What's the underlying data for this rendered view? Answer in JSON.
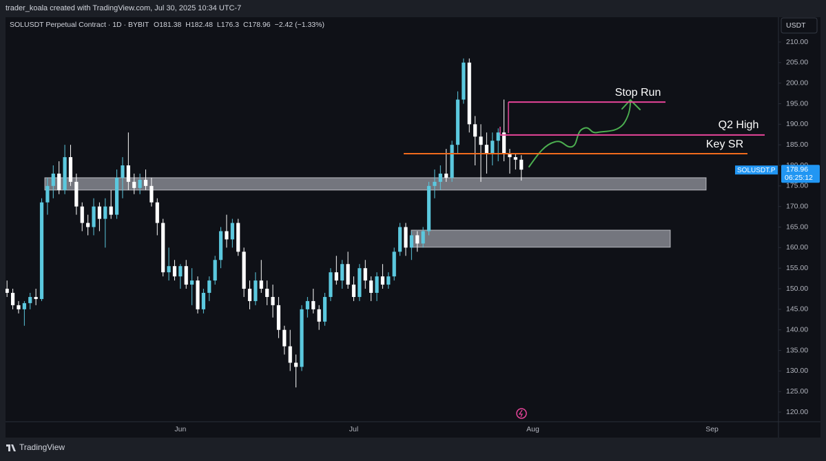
{
  "watermark": "trader_koala created with TradingView.com, Jul 30, 2025 10:34 UTC-7",
  "footer": "TradingView",
  "chart_data": {
    "type": "candlestick",
    "symbol": "SOLUSDT Perpetual Contract · 1D · BYBIT",
    "ohlc_prefixes": [
      "O",
      "H",
      "L",
      "C"
    ],
    "change": "−2.42 (−1.33%)",
    "currency": "USDT",
    "price_tag": {
      "symbol": "SOLUSDT.P",
      "countdown": "06:25:12"
    },
    "up_color": "#5bc8de",
    "down_color": "#ffffff",
    "grid": false,
    "levels": [
      {
        "label": "Stop Run",
        "value": 195.4,
        "color": "#e8459a"
      },
      {
        "label": "Q2 High",
        "value": 187.4,
        "color": "#e8459a"
      },
      {
        "label": "Key SR",
        "value": 182.85,
        "color": "#f26b1d"
      }
    ],
    "zones": [
      {
        "from": 174,
        "to": 177
      },
      {
        "from": 160.1,
        "to": 164.25
      }
    ],
    "ylim": [
      117.66,
      216.03
    ],
    "yticks": [
      {
        "value": 120,
        "label": "120.00"
      },
      {
        "value": 125,
        "label": "125.00"
      },
      {
        "value": 130,
        "label": "130.00"
      },
      {
        "value": 135,
        "label": "135.00"
      },
      {
        "value": 140,
        "label": "140.00"
      },
      {
        "value": 145,
        "label": "145.00"
      },
      {
        "value": 150,
        "label": "150.00"
      },
      {
        "value": 155,
        "label": "155.00"
      },
      {
        "value": 160,
        "label": "160.00"
      },
      {
        "value": 165,
        "label": "165.00"
      },
      {
        "value": 170,
        "label": "170.00"
      },
      {
        "value": 175,
        "label": "175.00"
      },
      {
        "value": 180,
        "label": "180.00"
      },
      {
        "value": 185,
        "label": "185.00"
      },
      {
        "value": 190,
        "label": "190.00"
      },
      {
        "value": 195,
        "label": "195.00"
      },
      {
        "value": 200,
        "label": "200.00"
      },
      {
        "value": 205,
        "label": "205.00"
      },
      {
        "value": 210,
        "label": "210.00"
      }
    ],
    "categories": [
      null,
      null,
      null,
      null,
      null,
      null,
      null,
      null,
      null,
      null,
      null,
      null,
      null,
      null,
      null,
      null,
      null,
      null,
      null,
      null,
      null,
      null,
      null,
      null,
      null,
      null,
      null,
      null,
      null,
      null,
      "Jun",
      null,
      null,
      null,
      null,
      null,
      null,
      null,
      null,
      null,
      null,
      null,
      null,
      null,
      null,
      null,
      null,
      null,
      null,
      null,
      null,
      null,
      null,
      null,
      null,
      null,
      null,
      null,
      null,
      null,
      "Jul",
      null,
      null,
      null,
      null,
      null,
      null,
      null,
      null,
      null,
      null,
      null,
      null,
      null,
      null,
      null,
      null,
      null,
      null,
      null,
      null,
      null,
      null,
      null,
      null,
      null,
      null,
      null,
      null,
      null,
      null,
      "Aug",
      null,
      null,
      null,
      null,
      null,
      null,
      null,
      null,
      null,
      null,
      null,
      null,
      null,
      null,
      null,
      null,
      null,
      null,
      null,
      null,
      null,
      null,
      null,
      null,
      null,
      null,
      null,
      null,
      null,
      null,
      "Sep",
      null,
      null,
      null,
      null,
      null,
      null,
      null,
      null,
      null,
      null,
      null
    ],
    "open": [
      150,
      149,
      146,
      145,
      146.5,
      148,
      147.5,
      171,
      175,
      178,
      174,
      182,
      176,
      170,
      166,
      165,
      170,
      167,
      170,
      168,
      177,
      180,
      176,
      174.5,
      176.5,
      175,
      171,
      166,
      154,
      155.5,
      153,
      155.5,
      151,
      152,
      145,
      149,
      152,
      157,
      164,
      162,
      166,
      159,
      150,
      147,
      152,
      150,
      148,
      146,
      140,
      136,
      132,
      131,
      145,
      147,
      145,
      142,
      148,
      154,
      152,
      156,
      151,
      148,
      155,
      152,
      149,
      153,
      151,
      153,
      159,
      165,
      160,
      163,
      161,
      164,
      175,
      176,
      178,
      177,
      185,
      196,
      205,
      190,
      187,
      185,
      183,
      186,
      188,
      183,
      182,
      181.38,
      null,
      null,
      null,
      null,
      null,
      null,
      null,
      null,
      null,
      null,
      null,
      null,
      null,
      null,
      null,
      null,
      null,
      null,
      null,
      null,
      null,
      null,
      null,
      null,
      null,
      null,
      null,
      null,
      null,
      null,
      null,
      null,
      null,
      null,
      null,
      null,
      null,
      null,
      null,
      null,
      null,
      null,
      null,
      null
    ],
    "high": [
      152,
      150,
      147,
      147,
      149,
      150,
      172,
      177,
      180,
      181,
      185,
      185,
      178,
      171,
      168,
      172,
      171,
      172,
      174,
      179,
      182,
      188,
      178,
      178,
      179,
      177,
      172,
      167,
      160,
      157,
      156,
      157,
      155,
      153,
      150,
      153,
      158,
      165,
      168,
      167,
      167,
      160,
      152,
      154,
      157,
      152,
      151,
      148,
      141,
      140,
      134,
      146,
      148,
      150,
      146,
      149,
      155,
      158,
      157,
      159,
      153,
      156,
      157,
      153,
      154,
      156,
      154,
      160,
      166,
      166,
      164,
      164,
      165,
      176,
      179,
      180,
      184,
      186,
      198,
      206,
      206,
      192,
      190,
      188,
      188,
      189,
      196,
      184,
      183,
      182.48,
      null,
      null,
      null,
      null,
      null,
      null,
      null,
      null,
      null,
      null,
      null,
      null,
      null,
      null,
      null,
      null,
      null,
      null,
      null,
      null,
      null,
      null,
      null,
      null,
      null,
      null,
      null,
      null,
      null,
      null,
      null,
      null,
      null,
      null,
      null,
      null,
      null,
      null,
      null,
      null,
      null,
      null,
      null,
      null
    ],
    "low": [
      148,
      145,
      144,
      141,
      145,
      146,
      147,
      168,
      172,
      173,
      173,
      175,
      168,
      164,
      163,
      163,
      164,
      160,
      167,
      167,
      172,
      174,
      173,
      173,
      174,
      170,
      163,
      153,
      152,
      152,
      150,
      150,
      146,
      144,
      144,
      147,
      151,
      155,
      160,
      160,
      158,
      148,
      145,
      146,
      149,
      146,
      143,
      138,
      134,
      130,
      126,
      130,
      143,
      144,
      140,
      141,
      147,
      151,
      150,
      150,
      147,
      147,
      150,
      147,
      147,
      150,
      150,
      152,
      158,
      158,
      157,
      159,
      160,
      163,
      172,
      174,
      176,
      176,
      183,
      195,
      188,
      180,
      176,
      178,
      180,
      181,
      181,
      178,
      179,
      176.3,
      null,
      null,
      null,
      null,
      null,
      null,
      null,
      null,
      null,
      null,
      null,
      null,
      null,
      null,
      null,
      null,
      null,
      null,
      null,
      null,
      null,
      null,
      null,
      null,
      null,
      null,
      null,
      null,
      null,
      null,
      null,
      null,
      null,
      null,
      null,
      null,
      null,
      null,
      null,
      null,
      null,
      null,
      null,
      null
    ],
    "close": [
      149,
      146,
      145,
      146.5,
      148,
      147.5,
      171,
      175,
      178,
      174,
      182,
      176,
      170,
      166,
      165,
      170,
      167,
      170,
      168,
      177,
      180,
      176,
      174.5,
      176.5,
      175,
      171,
      166,
      154,
      155.5,
      153,
      155.5,
      151,
      152,
      145,
      149,
      152,
      157,
      164,
      162,
      166,
      159,
      150,
      147,
      152,
      150,
      148,
      146,
      140,
      136,
      132,
      131,
      145,
      147,
      145,
      142,
      148,
      154,
      152,
      156,
      151,
      148,
      155,
      152,
      149,
      153,
      151,
      153,
      159,
      165,
      160,
      163,
      161,
      164,
      175,
      176,
      178,
      177,
      185,
      196,
      205,
      190,
      187,
      185,
      183,
      186,
      188,
      183,
      182,
      181.38,
      178.96,
      null,
      null,
      null,
      null,
      null,
      null,
      null,
      null,
      null,
      null,
      null,
      null,
      null,
      null,
      null,
      null,
      null,
      null,
      null,
      null,
      null,
      null,
      null,
      null,
      null,
      null,
      null,
      null,
      null,
      null,
      null,
      null,
      null,
      null,
      null,
      null,
      null,
      null,
      null,
      null,
      null,
      null,
      null,
      null
    ]
  }
}
